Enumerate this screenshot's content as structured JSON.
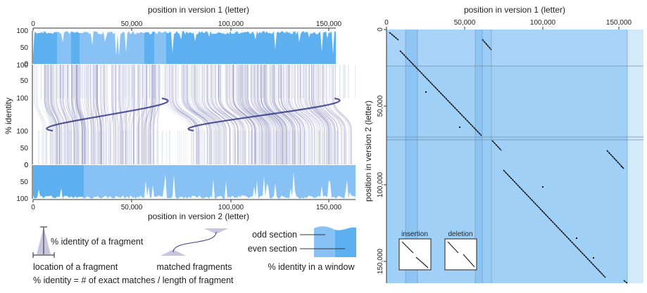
{
  "left": {
    "top_axis_label": "position in version 1 (letter)",
    "bottom_axis_label": "position in version 2 (letter)",
    "y_axis_label": "% identity",
    "x_ticks_top": [
      "0",
      "50,000",
      "100,000",
      "150,000"
    ],
    "x_ticks_bottom": [
      "0",
      "50,000",
      "100,000",
      "150,000"
    ],
    "y_ticks_top_window": [
      "100",
      "50",
      "0"
    ],
    "y_ticks_fragments_top": [
      "100",
      "50"
    ],
    "y_ticks_fragments_bottom": [
      "100",
      "50",
      "0"
    ],
    "y_ticks_bottom_window": [
      "0",
      "50",
      "100"
    ],
    "colors": {
      "odd": "#88c2f5",
      "even": "#5cb0f0",
      "link": "#3a3f8f"
    }
  },
  "right": {
    "top_axis_label": "position in version 1 (letter)",
    "y_axis_label": "position in version 2 (letter)",
    "x_ticks": [
      "0",
      "50,000",
      "100,000",
      "150,000"
    ],
    "y_ticks": [
      "0",
      "50,000",
      "100,000",
      "150,000"
    ],
    "inset_insertion": "insertion",
    "inset_deletion": "deletion"
  },
  "legend": {
    "fragment_identity": "% identity of a fragment",
    "fragment_location": "location of a fragment",
    "matched": "matched fragments",
    "odd_section": "odd section",
    "even_section": "even section",
    "window_identity": "% identity in a window",
    "formula": "% identity = # of exact matches / length of fragment"
  }
}
